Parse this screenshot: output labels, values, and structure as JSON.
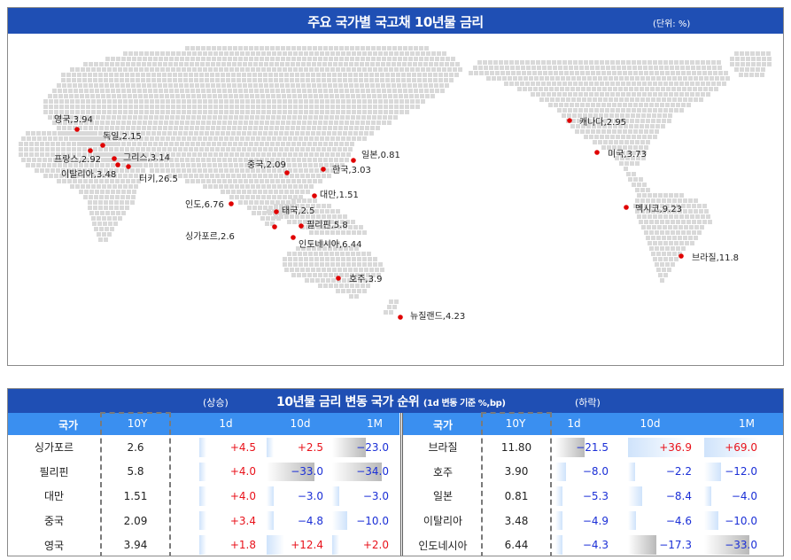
{
  "colors": {
    "header_blue": "#1f4fb4",
    "subheader_blue": "#3a8ff0",
    "rise_red": "#e8121b",
    "fall_blue": "#1b2fd6",
    "dot_red": "#e00000",
    "land_gray": "#d9d9d9"
  },
  "map": {
    "title": "주요 국가별 국고채 10년물 금리",
    "unit": "(단위: %)",
    "labels": [
      {
        "name": "영국",
        "value": "3.94",
        "text": "영국,3.94"
      },
      {
        "name": "독일",
        "value": "2.15",
        "text": "독일,2.15"
      },
      {
        "name": "프랑스",
        "value": "2.92",
        "text": "프랑스,2.92"
      },
      {
        "name": "그리스",
        "value": "3.14",
        "text": "그리스,3.14"
      },
      {
        "name": "이탈리아",
        "value": "3.48",
        "text": "이탈리아,3.48"
      },
      {
        "name": "터키",
        "value": "26.5",
        "text": "터키,26.5"
      },
      {
        "name": "중국",
        "value": "2.09",
        "text": "중국,2.09"
      },
      {
        "name": "일본",
        "value": "0.81",
        "text": "일본,0.81"
      },
      {
        "name": "한국",
        "value": "3.03",
        "text": "한국,3.03"
      },
      {
        "name": "대만",
        "value": "1.51",
        "text": "대만,1.51"
      },
      {
        "name": "인도",
        "value": "6.76",
        "text": "인도,6.76"
      },
      {
        "name": "태국",
        "value": "2.5",
        "text": "태국,2.5"
      },
      {
        "name": "필리핀",
        "value": "5.8",
        "text": "필리핀,5.8"
      },
      {
        "name": "싱가포르",
        "value": "2.6",
        "text": "싱가포르,2.6"
      },
      {
        "name": "인도네시아",
        "value": "6.44",
        "text": "인도네시아,6.44"
      },
      {
        "name": "호주",
        "value": "3.9",
        "text": "호주,3.9"
      },
      {
        "name": "뉴질랜드",
        "value": "4.23",
        "text": "뉴질랜드,4.23"
      },
      {
        "name": "캐나다",
        "value": "2.95",
        "text": "캐나다,2.95"
      },
      {
        "name": "미국",
        "value": "3.73",
        "text": "미국,3.73"
      },
      {
        "name": "멕시코",
        "value": "9.23",
        "text": "멕시코,9.23"
      },
      {
        "name": "브라질",
        "value": "11.8",
        "text": "브라질,11.8"
      }
    ]
  },
  "ranking": {
    "rise_label": "(상승)",
    "title": "10년물 금리 변동 국가 순위",
    "basis": "(1d 변동 기준 %,bp)",
    "fall_label": "(하락)",
    "columns": [
      "국가",
      "10Y",
      "1d",
      "10d",
      "1M"
    ]
  },
  "chart_data": {
    "type": "table",
    "rising": [
      {
        "country": "싱가포르",
        "y10": "2.6",
        "d1": "+4.5",
        "d10": "+2.5",
        "m1": "-23.0"
      },
      {
        "country": "필리핀",
        "y10": "5.8",
        "d1": "+4.0",
        "d10": "-33.0",
        "m1": "-34.0"
      },
      {
        "country": "대만",
        "y10": "1.51",
        "d1": "+4.0",
        "d10": "-3.0",
        "m1": "-3.0"
      },
      {
        "country": "중국",
        "y10": "2.09",
        "d1": "+3.4",
        "d10": "-4.8",
        "m1": "-10.0"
      },
      {
        "country": "영국",
        "y10": "3.94",
        "d1": "+1.8",
        "d10": "+12.4",
        "m1": "+2.0"
      }
    ],
    "falling": [
      {
        "country": "브라질",
        "y10": "11.80",
        "d1": "-21.5",
        "d10": "+36.9",
        "m1": "+69.0"
      },
      {
        "country": "호주",
        "y10": "3.90",
        "d1": "-8.0",
        "d10": "-2.2",
        "m1": "-12.0"
      },
      {
        "country": "일본",
        "y10": "0.81",
        "d1": "-5.3",
        "d10": "-8.4",
        "m1": "-4.0"
      },
      {
        "country": "이탈리아",
        "y10": "3.48",
        "d1": "-4.9",
        "d10": "-4.6",
        "m1": "-10.0"
      },
      {
        "country": "인도네시아",
        "y10": "6.44",
        "d1": "-4.3",
        "d10": "-17.3",
        "m1": "-33.0"
      }
    ]
  }
}
